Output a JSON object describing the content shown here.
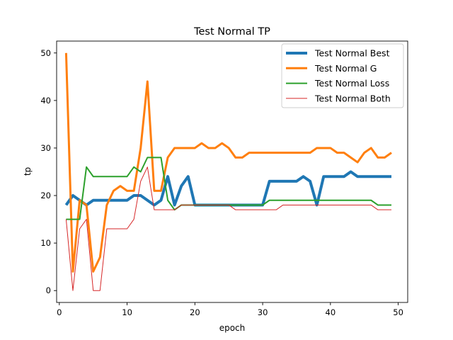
{
  "chart_data": {
    "type": "line",
    "title": "Test Normal TP",
    "xlabel": "epoch",
    "ylabel": "tp",
    "xlim": [
      -0.4,
      51.4
    ],
    "ylim": [
      -2.5,
      52.5
    ],
    "xticks": [
      0,
      10,
      20,
      30,
      40,
      50
    ],
    "yticks": [
      0,
      10,
      20,
      30,
      40,
      50
    ],
    "grid": false,
    "legend_position": "upper right",
    "x": [
      1,
      2,
      3,
      4,
      5,
      6,
      7,
      8,
      9,
      10,
      11,
      12,
      13,
      14,
      15,
      16,
      17,
      18,
      19,
      20,
      21,
      22,
      23,
      24,
      25,
      26,
      27,
      28,
      29,
      30,
      31,
      32,
      33,
      34,
      35,
      36,
      37,
      38,
      39,
      40,
      41,
      42,
      43,
      44,
      45,
      46,
      47,
      48,
      49
    ],
    "series": [
      {
        "name": "Test Normal Best",
        "color": "#1f77b4",
        "linewidth": 4,
        "values": [
          18,
          20,
          19,
          18,
          19,
          19,
          19,
          19,
          19,
          19,
          20,
          20,
          19,
          18,
          19,
          24,
          18,
          22,
          24,
          18,
          18,
          18,
          18,
          18,
          18,
          18,
          18,
          18,
          18,
          18,
          23,
          23,
          23,
          23,
          23,
          24,
          23,
          18,
          24,
          24,
          24,
          24,
          25,
          24,
          24,
          24,
          24,
          24,
          24
        ]
      },
      {
        "name": "Test Normal G",
        "color": "#ff7f0e",
        "linewidth": 3,
        "values": [
          50,
          4,
          19,
          18,
          4,
          7,
          18,
          21,
          22,
          21,
          21,
          30,
          44,
          21,
          21,
          28,
          30,
          30,
          30,
          30,
          31,
          30,
          30,
          31,
          30,
          28,
          28,
          29,
          29,
          29,
          29,
          29,
          29,
          29,
          29,
          29,
          29,
          30,
          30,
          30,
          29,
          29,
          28,
          27,
          29,
          30,
          28,
          28,
          29
        ]
      },
      {
        "name": "Test Normal Loss",
        "color": "#2ca02c",
        "linewidth": 2,
        "values": [
          15,
          15,
          15,
          26,
          24,
          24,
          24,
          24,
          24,
          24,
          26,
          25,
          28,
          28,
          28,
          19,
          17,
          18,
          18,
          18,
          18,
          18,
          18,
          18,
          18,
          18,
          18,
          18,
          18,
          18,
          19,
          19,
          19,
          19,
          19,
          19,
          19,
          19,
          19,
          19,
          19,
          19,
          19,
          19,
          19,
          19,
          18,
          18,
          18
        ]
      },
      {
        "name": "Test Normal Both",
        "color": "#d62728",
        "linewidth": 1,
        "values": [
          15,
          0,
          13,
          15,
          0,
          0,
          13,
          13,
          13,
          13,
          15,
          23,
          26,
          17,
          17,
          17,
          17,
          18,
          18,
          18,
          18,
          18,
          18,
          18,
          18,
          17,
          17,
          17,
          17,
          17,
          17,
          17,
          18,
          18,
          18,
          18,
          18,
          18,
          18,
          18,
          18,
          18,
          18,
          18,
          18,
          18,
          17,
          17,
          17
        ]
      }
    ]
  }
}
